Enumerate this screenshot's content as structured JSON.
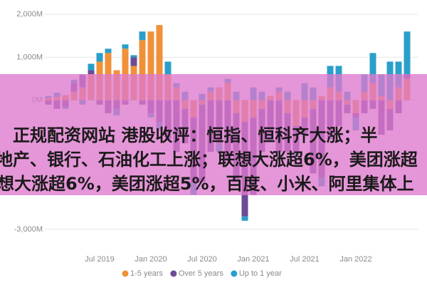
{
  "chart_data": {
    "type": "stacked-bar",
    "categories": [
      null,
      null,
      null,
      null,
      null,
      null,
      "Jul 2019",
      null,
      null,
      null,
      null,
      null,
      "Jan 2020",
      null,
      null,
      null,
      null,
      null,
      "Jul 2020",
      null,
      null,
      null,
      null,
      null,
      "Jan 2021",
      null,
      null,
      null,
      null,
      null,
      "Jul 2021",
      null,
      null,
      null,
      null,
      null,
      "Jan 2022",
      null,
      null,
      null,
      null,
      null,
      null
    ],
    "series": [
      {
        "name": "1-5 years",
        "color": "#f0913a",
        "values": [
          50,
          80,
          120,
          200,
          300,
          600,
          900,
          1100,
          700,
          1200,
          800,
          1400,
          1600,
          1750,
          600,
          300,
          -200,
          -400,
          -100,
          200,
          300,
          400,
          -300,
          -500,
          -400,
          -200,
          100,
          200,
          -300,
          -600,
          -400,
          -200,
          100,
          300,
          200,
          -100,
          -300,
          200,
          400,
          100,
          -200,
          300,
          500
        ]
      },
      {
        "name": "Over 5 years",
        "color": "#6c4b97",
        "values": [
          -100,
          -200,
          -150,
          200,
          300,
          100,
          -100,
          -300,
          -200,
          -100,
          200,
          -100,
          -300,
          -500,
          -900,
          -1200,
          -800,
          -1500,
          -1800,
          -1200,
          -1000,
          -1400,
          -1600,
          -2200,
          -1800,
          -1000,
          -800,
          -1200,
          -900,
          -600,
          -400,
          -1500,
          -1800,
          -900,
          -600,
          -200,
          -100,
          -300,
          -200,
          -800,
          -500,
          -300,
          100
        ]
      },
      {
        "name": "Up to 1 year",
        "color": "#2a9fca",
        "values": [
          50,
          100,
          -50,
          80,
          -100,
          150,
          200,
          100,
          -150,
          100,
          50,
          200,
          -100,
          -200,
          300,
          100,
          200,
          -300,
          150,
          100,
          -200,
          100,
          200,
          -100,
          300,
          200,
          -150,
          100,
          200,
          -100,
          400,
          300,
          -200,
          500,
          600,
          200,
          -300,
          400,
          700,
          500,
          900,
          600,
          1000
        ]
      }
    ],
    "ylim": [
      -3300,
      2200
    ],
    "yticks": [
      {
        "value": -3000,
        "label": "-3,000M"
      },
      {
        "value": 0,
        "label": "0M"
      },
      {
        "value": 1000,
        "label": "1,000M"
      },
      {
        "value": 2000,
        "label": "2,000M"
      }
    ],
    "grid": true
  },
  "banner": {
    "lines": [
      "正规配资网站 港股收评：恒指、恒科齐大涨；半",
      "地产、银行、石油化工上涨；联想大涨超6%，美团涨超",
      "想大涨超6%，美团涨超5%，百度、小米、阿里集体上"
    ]
  }
}
